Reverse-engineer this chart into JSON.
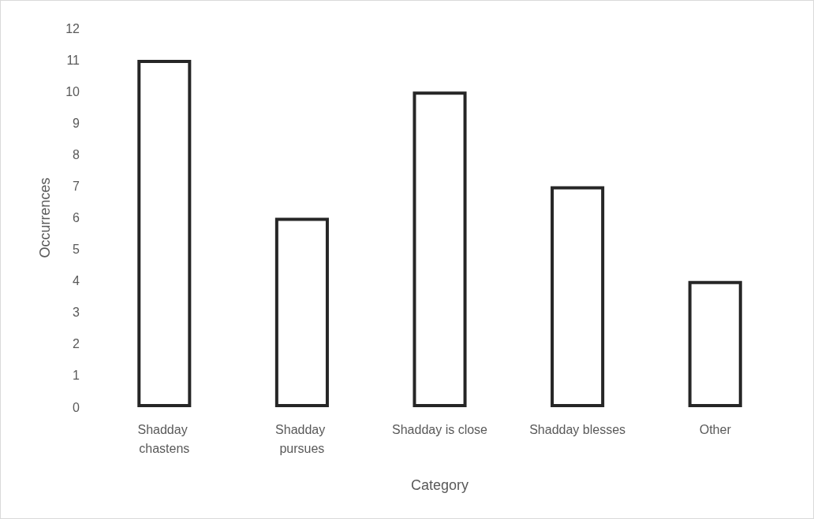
{
  "chart_data": {
    "type": "bar",
    "xlabel": "Category",
    "ylabel": "Occurrences",
    "categories": [
      "Shadday chastens",
      "Shadday pursues",
      "Shadday is close",
      "Shadday blesses",
      "Other"
    ],
    "values": [
      11,
      6,
      10,
      7,
      4
    ],
    "color": "#262626",
    "ylim": [
      0,
      12
    ],
    "yticks": [
      0,
      1,
      2,
      3,
      4,
      5,
      6,
      7,
      8,
      9,
      10,
      11,
      12
    ],
    "grid": false
  }
}
